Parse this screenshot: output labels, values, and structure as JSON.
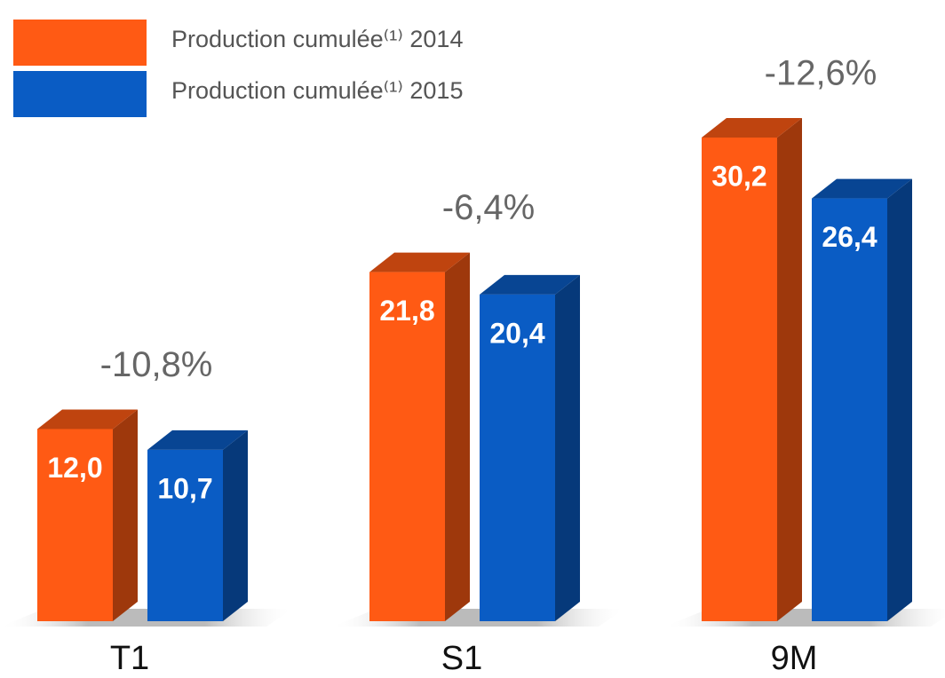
{
  "chart_data": {
    "type": "bar3d",
    "categories": [
      "T1",
      "S1",
      "9M"
    ],
    "series": [
      {
        "name": "Production cumulée⁽¹⁾ 2014",
        "color": "#ff5a14",
        "values": [
          12.0,
          21.8,
          30.2
        ],
        "value_labels": [
          "12,0",
          "21,8",
          "30,2"
        ]
      },
      {
        "name": "Production cumulée⁽¹⁾ 2015",
        "color": "#0a5cc4",
        "values": [
          10.7,
          20.4,
          26.4
        ],
        "value_labels": [
          "10,7",
          "20,4",
          "26,4"
        ]
      }
    ],
    "annotations": [
      "-10,8%",
      "-6,4%",
      "-12,6%"
    ]
  }
}
